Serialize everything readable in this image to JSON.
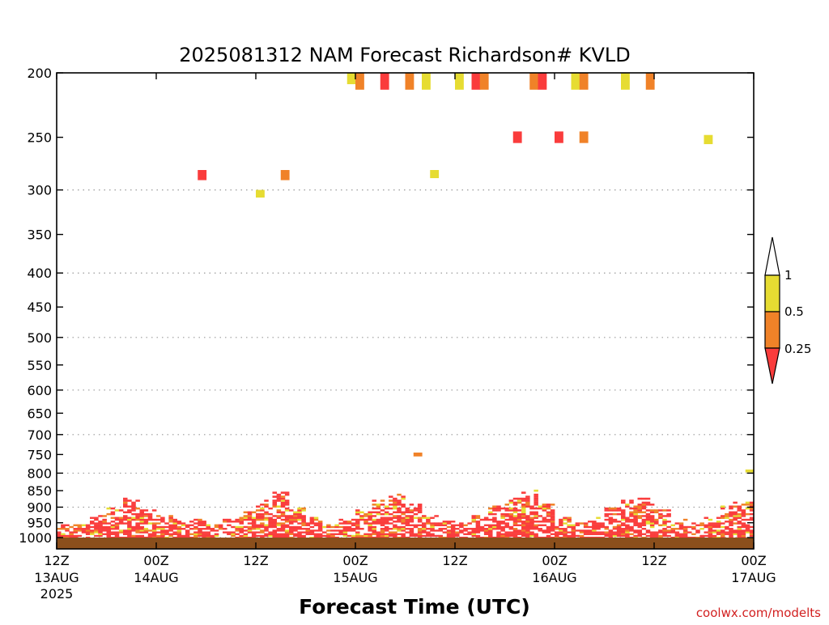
{
  "chart_data": {
    "type": "heatmap",
    "title": "2025081312 NAM Forecast Richardson# KVLD",
    "xlabel": "Forecast Time (UTC)",
    "credit": "coolwx.com/modelts",
    "y_axis": {
      "ticks": [
        200,
        250,
        300,
        350,
        400,
        450,
        500,
        550,
        600,
        650,
        700,
        750,
        800,
        850,
        900,
        950,
        1000
      ],
      "ylim": [
        200,
        1040
      ],
      "scale": "log-pressure"
    },
    "x_axis": {
      "xlim": [
        0,
        84
      ],
      "tick_hours": [
        0,
        12,
        24,
        36,
        48,
        60,
        72,
        84
      ],
      "tick_label_line1": [
        "12Z",
        "00Z",
        "12Z",
        "00Z",
        "12Z",
        "00Z",
        "12Z",
        "00Z"
      ],
      "tick_label_line2": [
        "13AUG",
        "14AUG",
        "",
        "15AUG",
        "",
        "16AUG",
        "",
        "17AUG"
      ],
      "tick_label_line3": [
        "2025",
        "",
        "",
        "",
        "",
        "",
        "",
        ""
      ]
    },
    "colorbar": {
      "labels": [
        "1",
        "0.5",
        "0.25"
      ],
      "colors": {
        "lt025": "#fa3c3c",
        "b025_05": "#f08228",
        "b05_1": "#e6dc32",
        "gt1": "#ffffff"
      }
    },
    "cells": [
      [
        35,
        200,
        208,
        "Y"
      ],
      [
        36,
        200,
        212,
        "O"
      ],
      [
        39,
        200,
        212,
        "R"
      ],
      [
        42,
        200,
        212,
        "O"
      ],
      [
        44,
        200,
        212,
        "Y"
      ],
      [
        48,
        200,
        212,
        "Y"
      ],
      [
        50,
        200,
        212,
        "R"
      ],
      [
        51,
        200,
        212,
        "O"
      ],
      [
        57,
        200,
        212,
        "O"
      ],
      [
        58,
        200,
        212,
        "R"
      ],
      [
        62,
        200,
        212,
        "Y"
      ],
      [
        63,
        200,
        212,
        "O"
      ],
      [
        68,
        200,
        212,
        "Y"
      ],
      [
        71,
        200,
        212,
        "O"
      ],
      [
        24,
        300,
        308,
        "Y"
      ],
      [
        17,
        280,
        290,
        "R"
      ],
      [
        27,
        280,
        290,
        "O"
      ],
      [
        45,
        280,
        288,
        "Y"
      ],
      [
        55,
        245,
        255,
        "R"
      ],
      [
        60,
        245,
        255,
        "R"
      ],
      [
        63,
        245,
        255,
        "O"
      ],
      [
        78,
        248,
        256,
        "Y"
      ],
      [
        43,
        745,
        755,
        "O"
      ],
      [
        83,
        790,
        798,
        "Y"
      ]
    ],
    "pbl_top_pressure": [
      955,
      940,
      925,
      900,
      870,
      905,
      925,
      935,
      940,
      955,
      935,
      915,
      880,
      855,
      900,
      930,
      955,
      935,
      905,
      880,
      860,
      890,
      925,
      935,
      950,
      925,
      895,
      870,
      845,
      890,
      930,
      950,
      930,
      900,
      875,
      870,
      905,
      935,
      950,
      930,
      885
    ]
  }
}
